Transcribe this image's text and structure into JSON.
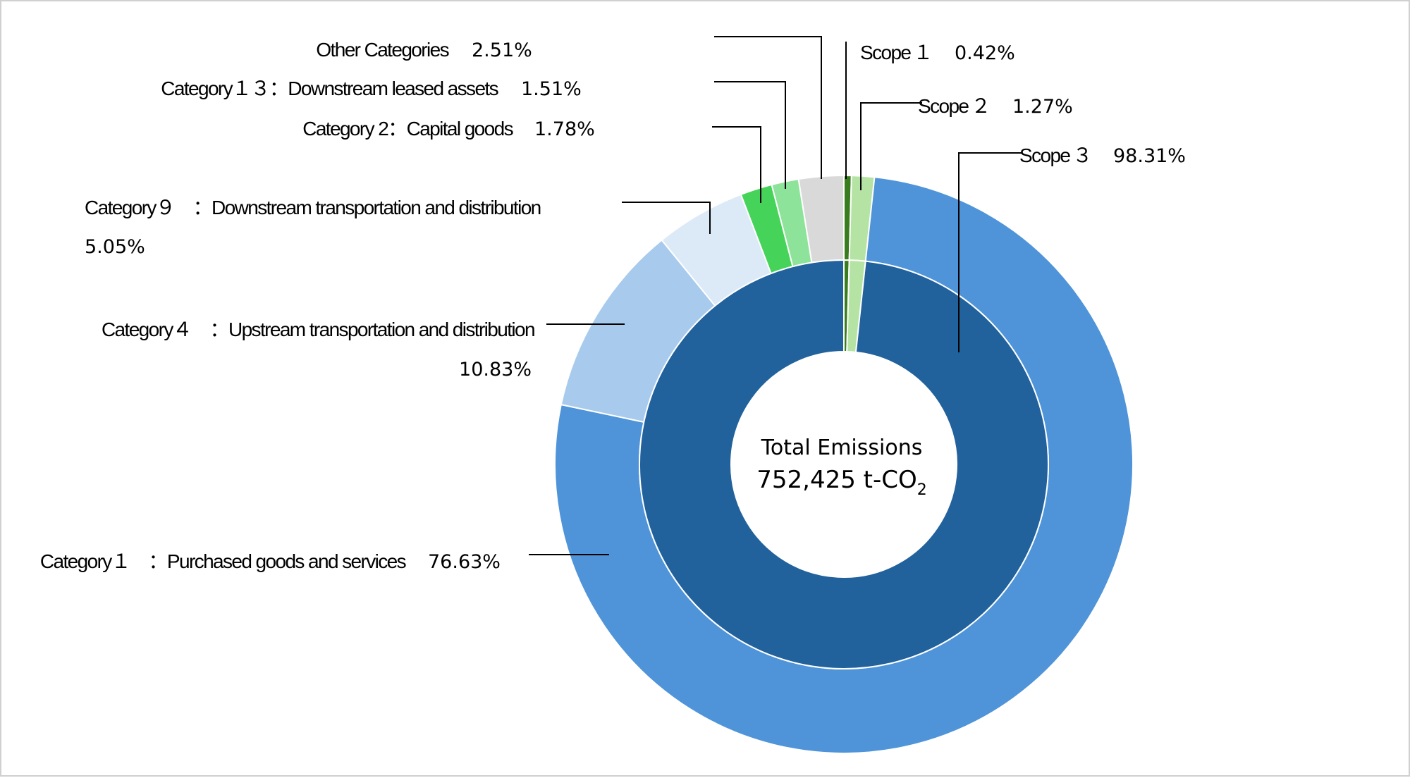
{
  "chart_data": {
    "type": "donut",
    "center": {
      "title": "Total Emissions",
      "value": "752,425 t-CO",
      "value_subscript": "2"
    },
    "inner_ring": {
      "name": "Scope",
      "slices": [
        {
          "label": "Scope １",
          "value": 0.42,
          "pct_text": "0.42%",
          "color": "#3a7d1e"
        },
        {
          "label": "Scope ２",
          "value": 1.27,
          "pct_text": "1.27%",
          "color": "#b4e3a4"
        },
        {
          "label": "Scope ３",
          "value": 98.31,
          "pct_text": "98.31%",
          "color": "#21619c"
        }
      ]
    },
    "outer_ring": {
      "name": "Category",
      "slices": [
        {
          "label": "Scope １",
          "value": 0.42,
          "color": "#3a7d1e",
          "labeled": false
        },
        {
          "label": "Scope ２",
          "value": 1.27,
          "color": "#b4e3a4",
          "labeled": false
        },
        {
          "label": "Category１　：Purchased goods and services",
          "value": 76.63,
          "pct_text": "76.63%",
          "color": "#4f94d9",
          "labeled": true
        },
        {
          "label": "Category４　：Upstream transportation and distribution",
          "value": 10.83,
          "pct_text": "10.83%",
          "color": "#a8caec",
          "labeled": true
        },
        {
          "label": "Category９　：Downstream transportation and distribution",
          "value": 5.05,
          "pct_text": "5.05%",
          "color": "#dce9f7",
          "labeled": true
        },
        {
          "label": "Category 2：Capital goods",
          "value": 1.78,
          "pct_text": "1.78%",
          "color": "#46d35a",
          "labeled": true
        },
        {
          "label": "Category１３：Downstream leased assets",
          "value": 1.51,
          "pct_text": "1.51%",
          "color": "#8ee39a",
          "labeled": true
        },
        {
          "label": "Other Categories",
          "value": 2.51,
          "pct_text": "2.51%",
          "color": "#d9d9d9",
          "labeled": true
        }
      ]
    }
  }
}
